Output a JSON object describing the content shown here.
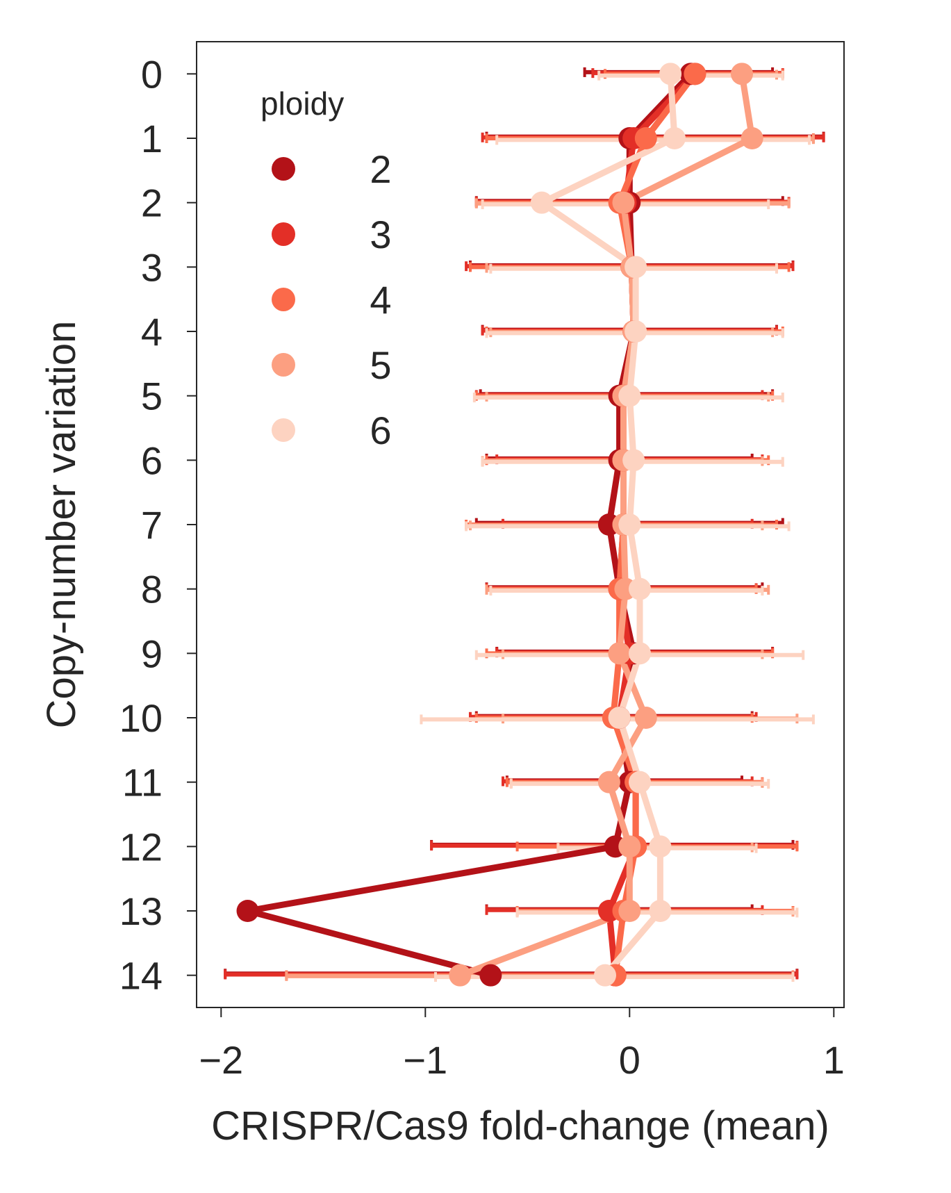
{
  "chart_data": {
    "type": "line",
    "orientation": "horizontal",
    "xlabel": "CRISPR/Cas9 fold-change (mean)",
    "ylabel": "Copy-number variation",
    "xlim": [
      -2.12,
      1.05
    ],
    "ylim": [
      -0.5,
      14.5
    ],
    "xticks": [
      -2,
      -1,
      0,
      1
    ],
    "xtick_labels": [
      "−2",
      "−1",
      "0",
      "1"
    ],
    "yticks": [
      0,
      1,
      2,
      3,
      4,
      5,
      6,
      7,
      8,
      9,
      10,
      11,
      12,
      13,
      14
    ],
    "ytick_labels": [
      "0",
      "1",
      "2",
      "3",
      "4",
      "5",
      "6",
      "7",
      "8",
      "9",
      "10",
      "11",
      "12",
      "13",
      "14"
    ],
    "grid": false,
    "legend": {
      "title": "ploidy",
      "position": "upper-left"
    },
    "y": [
      0,
      1,
      2,
      3,
      4,
      5,
      6,
      7,
      8,
      9,
      10,
      11,
      12,
      13,
      14
    ],
    "series": [
      {
        "name": "2",
        "color": "#b31218",
        "values": [
          0.3,
          0.0,
          0.0,
          0.01,
          0.02,
          -0.05,
          -0.05,
          -0.1,
          -0.05,
          0.02,
          -0.05,
          0.0,
          -0.07,
          -1.87,
          -0.68
        ],
        "err_low": [
          -0.22,
          -0.7,
          -0.75,
          -0.78,
          -0.72,
          -0.73,
          -0.7,
          -0.75,
          -0.7,
          -0.65,
          -0.75,
          -0.6,
          -0.97,
          -0.7,
          -1.98
        ],
        "err_high": [
          0.7,
          0.95,
          0.75,
          0.8,
          0.72,
          0.7,
          0.6,
          0.75,
          0.65,
          0.7,
          0.6,
          0.55,
          0.8,
          0.6,
          0.82
        ]
      },
      {
        "name": "3",
        "color": "#e32f27",
        "values": [
          0.32,
          0.02,
          -0.02,
          0.01,
          0.02,
          -0.03,
          -0.03,
          -0.03,
          -0.05,
          0.0,
          -0.05,
          0.03,
          0.03,
          -0.1,
          -0.07
        ],
        "err_low": [
          -0.18,
          -0.72,
          -0.75,
          -0.8,
          -0.72,
          -0.75,
          -0.65,
          -0.62,
          -0.7,
          -0.65,
          -0.78,
          -0.62,
          -0.97,
          -0.7,
          -1.98
        ],
        "err_high": [
          0.75,
          0.95,
          0.78,
          0.8,
          0.72,
          0.65,
          0.65,
          0.6,
          0.62,
          0.7,
          0.62,
          0.6,
          0.82,
          0.65,
          0.82
        ]
      },
      {
        "name": "4",
        "color": "#fb6a4a",
        "values": [
          0.32,
          0.08,
          -0.05,
          0.01,
          0.02,
          -0.03,
          -0.03,
          -0.03,
          -0.05,
          -0.05,
          -0.08,
          0.03,
          0.03,
          -0.03,
          -0.07
        ],
        "err_low": [
          -0.12,
          -0.7,
          -0.75,
          -0.78,
          -0.7,
          -0.75,
          -0.7,
          -0.8,
          -0.7,
          -0.7,
          -0.75,
          -0.6,
          -0.55,
          -0.55,
          -1.68
        ],
        "err_high": [
          0.75,
          0.9,
          0.78,
          0.78,
          0.75,
          0.7,
          0.68,
          0.72,
          0.62,
          0.7,
          0.6,
          0.65,
          0.82,
          0.8,
          0.8
        ]
      },
      {
        "name": "5",
        "color": "#fc9f81",
        "values": [
          0.55,
          0.6,
          -0.03,
          0.01,
          0.02,
          -0.03,
          -0.03,
          -0.03,
          -0.02,
          -0.05,
          0.08,
          -0.1,
          0.0,
          0.0,
          -0.83
        ],
        "err_low": [
          0.22,
          0.0,
          -0.75,
          -0.7,
          -0.68,
          -0.7,
          -0.72,
          -0.78,
          -0.7,
          -0.62,
          -0.62,
          -0.58,
          -0.35,
          -0.55,
          -1.68
        ],
        "err_high": [
          0.72,
          0.9,
          0.78,
          0.72,
          0.7,
          0.68,
          0.65,
          0.65,
          0.68,
          0.65,
          0.82,
          0.65,
          0.6,
          0.8,
          0.8
        ]
      },
      {
        "name": "6",
        "color": "#fdd3c1",
        "values": [
          0.2,
          0.22,
          -0.43,
          0.03,
          0.03,
          0.0,
          0.02,
          0.0,
          0.05,
          0.05,
          -0.05,
          0.05,
          0.15,
          0.15,
          -0.12
        ],
        "err_low": [
          -0.15,
          -0.65,
          -0.72,
          -0.68,
          -0.7,
          -0.76,
          -0.72,
          -0.8,
          -0.68,
          -0.75,
          -1.02,
          -0.58,
          -0.35,
          -0.55,
          -0.95
        ],
        "err_high": [
          0.75,
          0.88,
          0.68,
          0.72,
          0.75,
          0.75,
          0.75,
          0.78,
          0.65,
          0.85,
          0.9,
          0.68,
          0.62,
          0.82,
          0.8
        ]
      }
    ]
  }
}
